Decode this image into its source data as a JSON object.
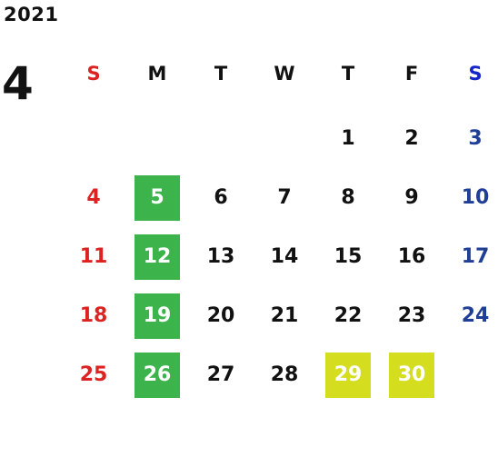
{
  "year": "2021",
  "month": "4",
  "weekdays": [
    "S",
    "M",
    "T",
    "W",
    "T",
    "F",
    "S"
  ],
  "weeks": [
    [
      "",
      "",
      "",
      "",
      "1",
      "2",
      "3"
    ],
    [
      "4",
      "5",
      "6",
      "7",
      "8",
      "9",
      "10"
    ],
    [
      "11",
      "12",
      "13",
      "14",
      "15",
      "16",
      "17"
    ],
    [
      "18",
      "19",
      "20",
      "21",
      "22",
      "23",
      "24"
    ],
    [
      "25",
      "26",
      "27",
      "28",
      "29",
      "30",
      ""
    ]
  ],
  "highlights": {
    "green": [
      "5",
      "12",
      "19",
      "26"
    ],
    "yellow": [
      "29",
      "30"
    ]
  },
  "colors": {
    "sunday": "#dd2222",
    "saturday": "#1f3f96",
    "weekday": "#111111",
    "green_highlight": "#3cb44b",
    "yellow_highlight": "#d4dd1e"
  }
}
